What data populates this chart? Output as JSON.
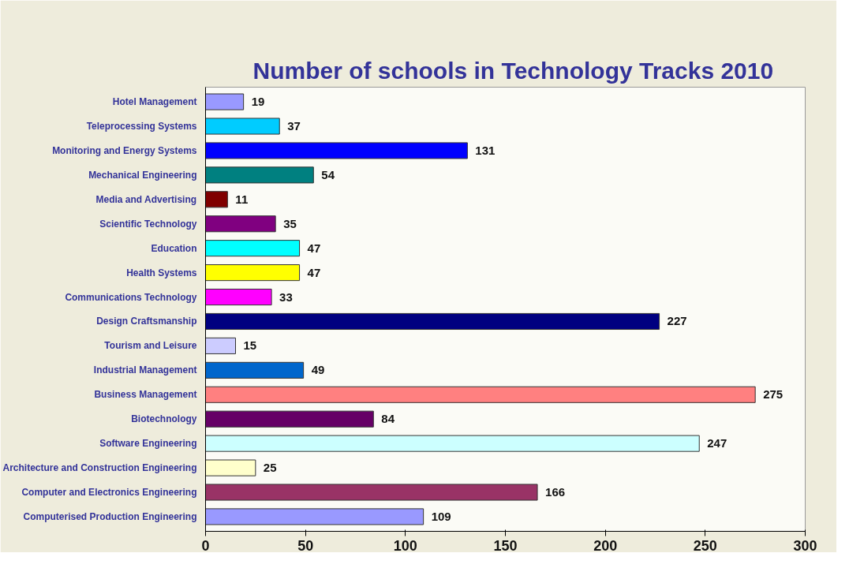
{
  "chart_data": {
    "type": "bar",
    "title": "Number of schools in Technology Tracks 2010",
    "orientation": "horizontal",
    "categories": [
      "Hotel Management",
      "Teleprocessing Systems",
      "Monitoring and Energy Systems",
      "Mechanical Engineering",
      "Media and Advertising",
      "Scientific Technology",
      "Education",
      "Health Systems",
      "Communications Technology",
      "Design Craftsmanship",
      "Tourism and Leisure",
      "Industrial Management",
      "Business Management",
      "Biotechnology",
      "Software Engineering",
      "Architecture and Construction Engineering",
      "Computer and Electronics Engineering",
      "Computerised Production Engineering"
    ],
    "values": [
      19,
      37,
      131,
      54,
      11,
      35,
      47,
      47,
      33,
      227,
      15,
      49,
      275,
      84,
      247,
      25,
      166,
      109
    ],
    "colors": [
      "#9999ff",
      "#00ccff",
      "#0000ff",
      "#008080",
      "#800000",
      "#800080",
      "#00ffff",
      "#ffff00",
      "#ff00ff",
      "#000080",
      "#ccccff",
      "#0066cc",
      "#ff8080",
      "#660066",
      "#ccffff",
      "#ffffcc",
      "#993366",
      "#9999ff"
    ],
    "xlim": [
      0,
      300
    ],
    "xticks": [
      0,
      50,
      100,
      150,
      200,
      250,
      300
    ],
    "grid": false,
    "data_labels": true
  }
}
